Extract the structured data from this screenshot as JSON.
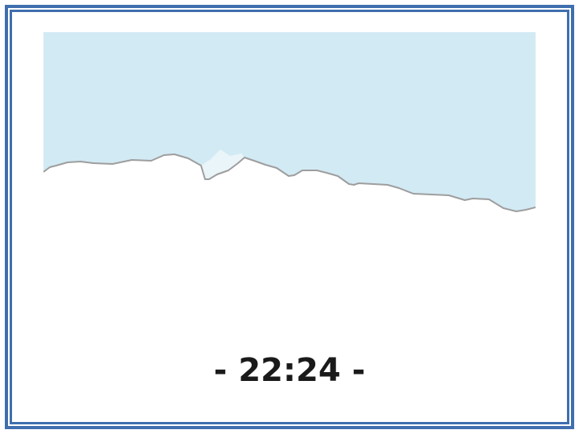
{
  "clock": {
    "time_text": "- 22:24 -"
  },
  "scene": {
    "sky_color": "#d2eaf4",
    "terrain_stroke_color": "#9e9e9e",
    "snow_color": "#eaf5f9",
    "icon": "mountain-skyline"
  },
  "frame": {
    "border_color": "#3f6fae"
  }
}
